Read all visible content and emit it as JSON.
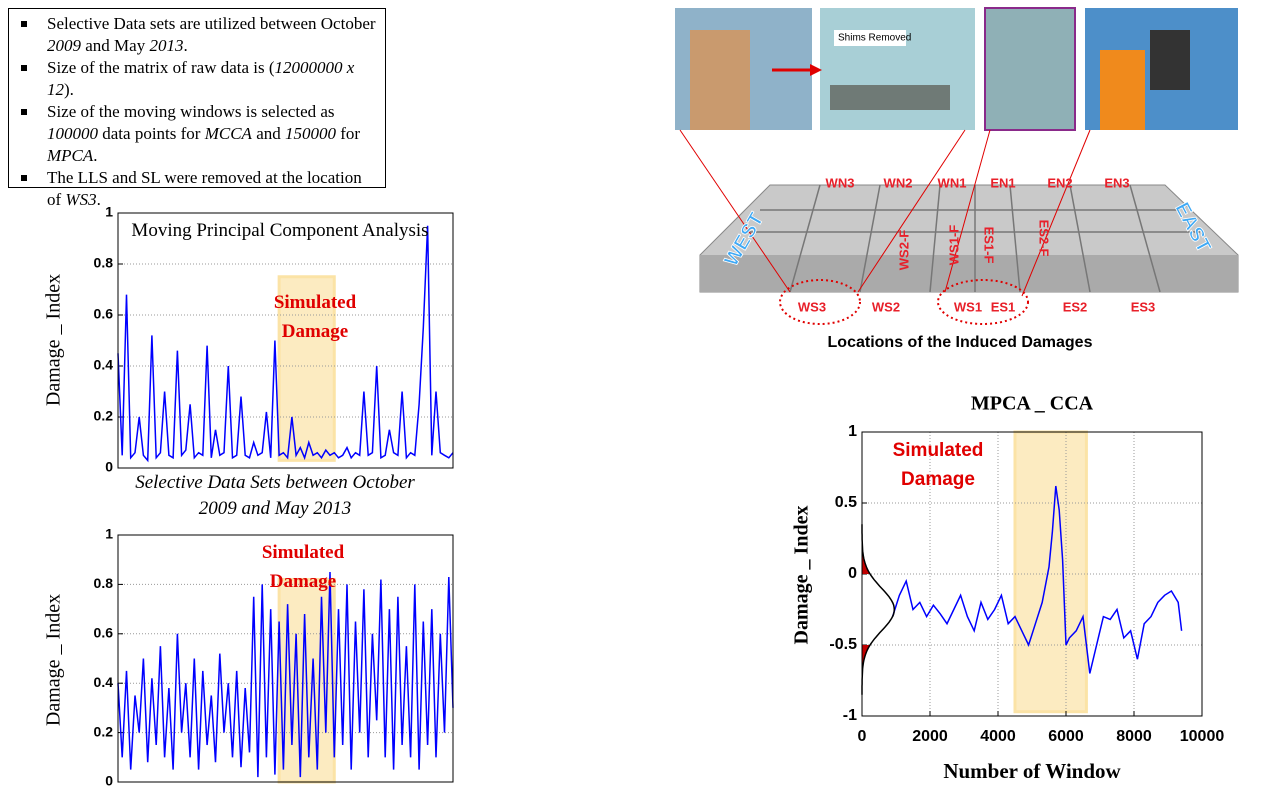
{
  "bullets": [
    [
      {
        "text": "Selective Data sets are utilized between October "
      },
      {
        "text": "2009",
        "italic": true
      },
      {
        "text": " and May "
      },
      {
        "text": "2013",
        "italic": true
      },
      {
        "text": "."
      }
    ],
    [
      {
        "text": "Size of the matrix of raw data is ("
      },
      {
        "text": "12000000 x 12",
        "italic": true
      },
      {
        "text": ")."
      }
    ],
    [
      {
        "text": "Size of the moving windows is selected as "
      },
      {
        "text": "100000",
        "italic": true
      },
      {
        "text": " data points for "
      },
      {
        "text": "MCCA",
        "italic": true
      },
      {
        "text": " and "
      },
      {
        "text": "150000",
        "italic": true
      },
      {
        "text": " for "
      },
      {
        "text": "MPCA",
        "italic": true
      },
      {
        "text": "."
      }
    ],
    [
      {
        "text": "The LLS and SL were removed at the location of "
      },
      {
        "text": "WS3",
        "italic": true
      },
      {
        "text": "."
      }
    ]
  ],
  "figure": {
    "photo_label": "Shims Removed",
    "north_labels": [
      "WN3",
      "WN2",
      "WN1",
      "EN1",
      "EN2",
      "EN3"
    ],
    "south_labels": [
      "WS3",
      "WS2",
      "WS1",
      "ES1",
      "ES2",
      "ES3"
    ],
    "frame_labels": [
      "WS2-F",
      "WS1-F",
      "ES1-F",
      "ES2-F"
    ],
    "side_labels": [
      "WEST",
      "EAST"
    ],
    "caption": "Locations of the Induced Damages"
  },
  "chart_data": [
    {
      "type": "line",
      "title": "Moving Principal Component Analysis",
      "x_label": "Selective Data Sets between October 2009 and May 2013",
      "y_label": "Damage _ Index",
      "annotation": "Simulated Damage",
      "values": [
        0.45,
        0.05,
        0.68,
        0.04,
        0.06,
        0.2,
        0.05,
        0.03,
        0.52,
        0.04,
        0.06,
        0.3,
        0.05,
        0.04,
        0.46,
        0.05,
        0.07,
        0.25,
        0.04,
        0.06,
        0.05,
        0.48,
        0.04,
        0.15,
        0.05,
        0.06,
        0.4,
        0.04,
        0.05,
        0.28,
        0.05,
        0.04,
        0.1,
        0.05,
        0.06,
        0.22,
        0.04,
        0.5,
        0.05,
        0.06,
        0.04,
        0.2,
        0.05,
        0.08,
        0.04,
        0.1,
        0.05,
        0.06,
        0.04,
        0.07,
        0.05,
        0.06,
        0.04,
        0.05,
        0.08,
        0.04,
        0.06,
        0.05,
        0.3,
        0.05,
        0.06,
        0.4,
        0.04,
        0.05,
        0.15,
        0.06,
        0.05,
        0.3,
        0.04,
        0.06,
        0.05,
        0.25,
        0.55,
        0.95,
        0.05,
        0.3,
        0.06,
        0.05,
        0.04,
        0.06
      ],
      "color": "#0000ff",
      "ylim": [
        0,
        1
      ],
      "yticks": [
        0,
        0.2,
        0.4,
        0.6,
        0.8,
        1
      ],
      "grid": "y",
      "shade": {
        "x": [
          38,
          51
        ],
        "y": [
          0.03,
          0.75
        ],
        "color": "#fbe3a6"
      }
    },
    {
      "type": "line",
      "y_label": "Damage _ Index",
      "annotation": "Simulated Damage",
      "values": [
        0.4,
        0.1,
        0.45,
        0.05,
        0.35,
        0.2,
        0.5,
        0.08,
        0.42,
        0.15,
        0.55,
        0.1,
        0.38,
        0.05,
        0.6,
        0.2,
        0.4,
        0.1,
        0.5,
        0.05,
        0.45,
        0.15,
        0.35,
        0.08,
        0.52,
        0.2,
        0.4,
        0.1,
        0.45,
        0.06,
        0.38,
        0.12,
        0.75,
        0.02,
        0.8,
        0.1,
        0.7,
        0.03,
        0.65,
        0.05,
        0.72,
        0.15,
        0.6,
        0.02,
        0.68,
        0.1,
        0.5,
        0.05,
        0.75,
        0.2,
        0.85,
        0.1,
        0.7,
        0.15,
        0.8,
        0.05,
        0.65,
        0.2,
        0.78,
        0.1,
        0.6,
        0.25,
        0.82,
        0.1,
        0.7,
        0.05,
        0.75,
        0.15,
        0.55,
        0.1,
        0.8,
        0.05,
        0.65,
        0.15,
        0.7,
        0.1,
        0.6,
        0.2,
        0.83,
        0.3
      ],
      "color": "#0000ff",
      "ylim": [
        0,
        1
      ],
      "yticks": [
        0,
        0.2,
        0.4,
        0.6,
        0.8,
        1
      ],
      "grid": "y",
      "shade": {
        "x": [
          38,
          51
        ],
        "y": [
          0,
          0.82
        ],
        "color": "#fbe3a6"
      }
    },
    {
      "type": "line",
      "title": "MPCA _ CCA",
      "x_label": "Number of Window",
      "y_label": "Damage _ Index",
      "annotation": "Simulated Damage",
      "x": [
        900,
        1100,
        1300,
        1500,
        1700,
        1900,
        2100,
        2300,
        2500,
        2700,
        2900,
        3100,
        3300,
        3500,
        3700,
        3900,
        4100,
        4300,
        4500,
        4700,
        4900,
        5100,
        5300,
        5500,
        5600,
        5700,
        5800,
        5900,
        6000,
        6100,
        6300,
        6500,
        6700,
        6900,
        7100,
        7300,
        7500,
        7700,
        7900,
        8100,
        8300,
        8500,
        8700,
        8900,
        9100,
        9300,
        9400
      ],
      "values": [
        -0.3,
        -0.15,
        -0.05,
        -0.25,
        -0.2,
        -0.3,
        -0.22,
        -0.28,
        -0.35,
        -0.25,
        -0.15,
        -0.3,
        -0.4,
        -0.2,
        -0.32,
        -0.25,
        -0.15,
        -0.35,
        -0.3,
        -0.4,
        -0.5,
        -0.35,
        -0.2,
        0.05,
        0.3,
        0.62,
        0.45,
        0.1,
        -0.5,
        -0.45,
        -0.4,
        -0.3,
        -0.7,
        -0.5,
        -0.3,
        -0.32,
        -0.25,
        -0.45,
        -0.4,
        -0.6,
        -0.35,
        -0.3,
        -0.2,
        -0.15,
        -0.12,
        -0.2,
        -0.4
      ],
      "color": "#0000ff",
      "xlim": [
        0,
        10000
      ],
      "xticks": [
        0,
        2000,
        4000,
        6000,
        8000,
        10000
      ],
      "ylim": [
        -1,
        1
      ],
      "yticks": [
        -1,
        -0.5,
        0,
        0.5,
        1
      ],
      "grid": "both",
      "shade": {
        "x": [
          4500,
          6600
        ],
        "y": [
          -0.97,
          1
        ],
        "color": "#fbe3a6"
      },
      "distribution": {
        "mean": -0.25,
        "std": 0.15,
        "peak": 950,
        "tails": [
          -0.5,
          0
        ],
        "tail_color": "#c00000"
      }
    }
  ]
}
